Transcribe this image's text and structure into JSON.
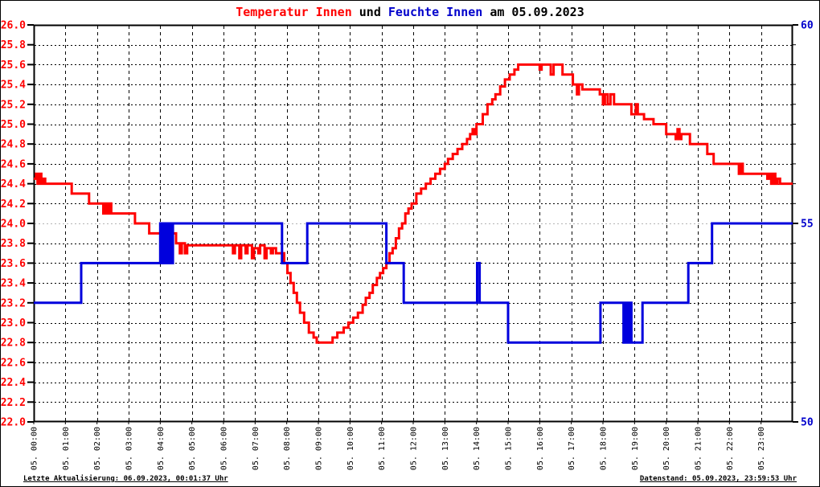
{
  "title": {
    "temperature": "Temperatur Innen",
    "connector": " und ",
    "humidity": "Feuchte Innen",
    "date_suffix": " am 05.09.2023"
  },
  "footer": {
    "left": "Letzte Aktualisierung: 06.09.2023, 00:01:37 Uhr",
    "right": "Datenstand: 05.09.2023, 23:59:53 Uhr"
  },
  "colors": {
    "temperature_line": "#ff0000",
    "humidity_line": "#0000dd",
    "left_axis_labels": "#ff0000",
    "right_axis_labels": "#0000cc",
    "x_axis_labels": "#000000",
    "grid": "#000000",
    "grid_humidity_major": "#b4b4b4",
    "axis_frame": "#000000"
  },
  "chart_data": {
    "type": "line",
    "title": "Temperatur Innen und Feuchte Innen am 05.09.2023",
    "grid": true,
    "legend_position": "none",
    "y_left": {
      "min": 22.0,
      "max": 26.0,
      "step": 0.2,
      "tick_labels": [
        "26.0",
        "25.8",
        "25.6",
        "25.4",
        "25.2",
        "25.0",
        "24.8",
        "24.6",
        "24.4",
        "24.2",
        "24.0",
        "23.8",
        "23.6",
        "23.4",
        "23.2",
        "23.0",
        "22.8",
        "22.6",
        "22.4",
        "22.2",
        "22.0"
      ]
    },
    "y_right": {
      "min": 50,
      "max": 60,
      "minor_step": 0.5,
      "tick_labels": [
        "60",
        "55",
        "50"
      ],
      "tick_values": [
        60,
        55,
        50
      ]
    },
    "x_axis": {
      "hours": 24,
      "tick_labels": [
        "05. 00:00",
        "05. 01:00",
        "05. 02:00",
        "05. 03:00",
        "05. 04:00",
        "05. 05:00",
        "05. 06:00",
        "05. 07:00",
        "05. 08:00",
        "05. 09:00",
        "05. 10:00",
        "05. 11:00",
        "05. 12:00",
        "05. 13:00",
        "05. 14:00",
        "05. 15:00",
        "05. 16:00",
        "05. 17:00",
        "05. 18:00",
        "05. 19:00",
        "05. 20:00",
        "05. 21:00",
        "05. 22:00",
        "05. 23:00"
      ]
    },
    "series": [
      {
        "name": "Temperatur Innen",
        "axis": "left",
        "color": "#ff0000",
        "points": [
          [
            0.0,
            24.45
          ],
          [
            0.07,
            24.5
          ],
          [
            0.12,
            24.4
          ],
          [
            0.18,
            24.5
          ],
          [
            0.24,
            24.4
          ],
          [
            0.3,
            24.45
          ],
          [
            0.36,
            24.4
          ],
          [
            1.2,
            24.3
          ],
          [
            1.75,
            24.2
          ],
          [
            2.2,
            24.1
          ],
          [
            2.26,
            24.2
          ],
          [
            2.32,
            24.1
          ],
          [
            2.38,
            24.2
          ],
          [
            2.45,
            24.1
          ],
          [
            3.2,
            24.0
          ],
          [
            3.65,
            23.9
          ],
          [
            4.5,
            23.8
          ],
          [
            4.62,
            23.7
          ],
          [
            4.68,
            23.8
          ],
          [
            4.78,
            23.7
          ],
          [
            4.85,
            23.78
          ],
          [
            6.3,
            23.7
          ],
          [
            6.36,
            23.78
          ],
          [
            6.5,
            23.65
          ],
          [
            6.56,
            23.78
          ],
          [
            6.7,
            23.7
          ],
          [
            6.76,
            23.78
          ],
          [
            6.9,
            23.65
          ],
          [
            6.96,
            23.75
          ],
          [
            7.1,
            23.7
          ],
          [
            7.16,
            23.78
          ],
          [
            7.3,
            23.65
          ],
          [
            7.36,
            23.75
          ],
          [
            7.5,
            23.7
          ],
          [
            7.56,
            23.75
          ],
          [
            7.66,
            23.7
          ],
          [
            7.92,
            23.6
          ],
          [
            8.02,
            23.5
          ],
          [
            8.12,
            23.4
          ],
          [
            8.22,
            23.3
          ],
          [
            8.32,
            23.2
          ],
          [
            8.42,
            23.1
          ],
          [
            8.55,
            23.0
          ],
          [
            8.7,
            22.9
          ],
          [
            8.85,
            22.85
          ],
          [
            8.95,
            22.8
          ],
          [
            9.45,
            22.85
          ],
          [
            9.6,
            22.9
          ],
          [
            9.8,
            22.95
          ],
          [
            9.95,
            23.0
          ],
          [
            10.1,
            23.05
          ],
          [
            10.25,
            23.1
          ],
          [
            10.4,
            23.18
          ],
          [
            10.5,
            23.25
          ],
          [
            10.62,
            23.3
          ],
          [
            10.72,
            23.38
          ],
          [
            10.85,
            23.45
          ],
          [
            10.95,
            23.5
          ],
          [
            11.05,
            23.55
          ],
          [
            11.15,
            23.6
          ],
          [
            11.25,
            23.7
          ],
          [
            11.35,
            23.75
          ],
          [
            11.45,
            23.85
          ],
          [
            11.55,
            23.95
          ],
          [
            11.65,
            24.0
          ],
          [
            11.75,
            24.1
          ],
          [
            11.85,
            24.15
          ],
          [
            11.95,
            24.2
          ],
          [
            12.1,
            24.3
          ],
          [
            12.25,
            24.35
          ],
          [
            12.4,
            24.4
          ],
          [
            12.55,
            24.45
          ],
          [
            12.7,
            24.5
          ],
          [
            12.85,
            24.55
          ],
          [
            13.0,
            24.6
          ],
          [
            13.1,
            24.65
          ],
          [
            13.25,
            24.7
          ],
          [
            13.4,
            24.75
          ],
          [
            13.55,
            24.8
          ],
          [
            13.7,
            24.85
          ],
          [
            13.8,
            24.9
          ],
          [
            13.88,
            24.95
          ],
          [
            13.93,
            24.9
          ],
          [
            14.0,
            25.0
          ],
          [
            14.2,
            25.1
          ],
          [
            14.35,
            25.2
          ],
          [
            14.5,
            25.25
          ],
          [
            14.6,
            25.3
          ],
          [
            14.75,
            25.38
          ],
          [
            14.9,
            25.45
          ],
          [
            15.05,
            25.5
          ],
          [
            15.2,
            25.55
          ],
          [
            15.32,
            25.6
          ],
          [
            16.0,
            25.55
          ],
          [
            16.06,
            25.6
          ],
          [
            16.35,
            25.5
          ],
          [
            16.44,
            25.6
          ],
          [
            16.72,
            25.5
          ],
          [
            17.05,
            25.4
          ],
          [
            17.18,
            25.3
          ],
          [
            17.24,
            25.4
          ],
          [
            17.35,
            25.35
          ],
          [
            17.9,
            25.3
          ],
          [
            18.0,
            25.2
          ],
          [
            18.06,
            25.3
          ],
          [
            18.15,
            25.2
          ],
          [
            18.24,
            25.3
          ],
          [
            18.35,
            25.2
          ],
          [
            18.9,
            25.1
          ],
          [
            19.04,
            25.2
          ],
          [
            19.1,
            25.1
          ],
          [
            19.3,
            25.05
          ],
          [
            19.6,
            25.0
          ],
          [
            20.0,
            24.9
          ],
          [
            20.3,
            24.85
          ],
          [
            20.36,
            24.95
          ],
          [
            20.42,
            24.85
          ],
          [
            20.48,
            24.9
          ],
          [
            20.75,
            24.8
          ],
          [
            21.3,
            24.7
          ],
          [
            21.5,
            24.6
          ],
          [
            22.3,
            24.5
          ],
          [
            22.36,
            24.6
          ],
          [
            22.42,
            24.5
          ],
          [
            23.2,
            24.45
          ],
          [
            23.26,
            24.5
          ],
          [
            23.32,
            24.4
          ],
          [
            23.38,
            24.5
          ],
          [
            23.45,
            24.4
          ],
          [
            23.52,
            24.45
          ],
          [
            23.6,
            24.4
          ],
          [
            24.0,
            24.4
          ]
        ]
      },
      {
        "name": "Feuchte Innen",
        "axis": "right",
        "color": "#0000dd",
        "points": [
          [
            0.0,
            53
          ],
          [
            1.5,
            54
          ],
          [
            4.0,
            55
          ],
          [
            4.04,
            54
          ],
          [
            4.08,
            55
          ],
          [
            4.12,
            54
          ],
          [
            4.16,
            55
          ],
          [
            4.2,
            54
          ],
          [
            4.24,
            55
          ],
          [
            4.28,
            54
          ],
          [
            4.32,
            55
          ],
          [
            4.36,
            54
          ],
          [
            4.4,
            55
          ],
          [
            7.85,
            54
          ],
          [
            8.65,
            55
          ],
          [
            11.15,
            54
          ],
          [
            11.7,
            53
          ],
          [
            14.02,
            54
          ],
          [
            14.1,
            53
          ],
          [
            15.0,
            52
          ],
          [
            17.92,
            53
          ],
          [
            18.65,
            52
          ],
          [
            18.69,
            53
          ],
          [
            18.73,
            52
          ],
          [
            18.77,
            53
          ],
          [
            18.81,
            52
          ],
          [
            18.85,
            53
          ],
          [
            18.9,
            52
          ],
          [
            19.25,
            53
          ],
          [
            20.7,
            54
          ],
          [
            21.45,
            55
          ],
          [
            24.0,
            55
          ]
        ]
      }
    ]
  }
}
